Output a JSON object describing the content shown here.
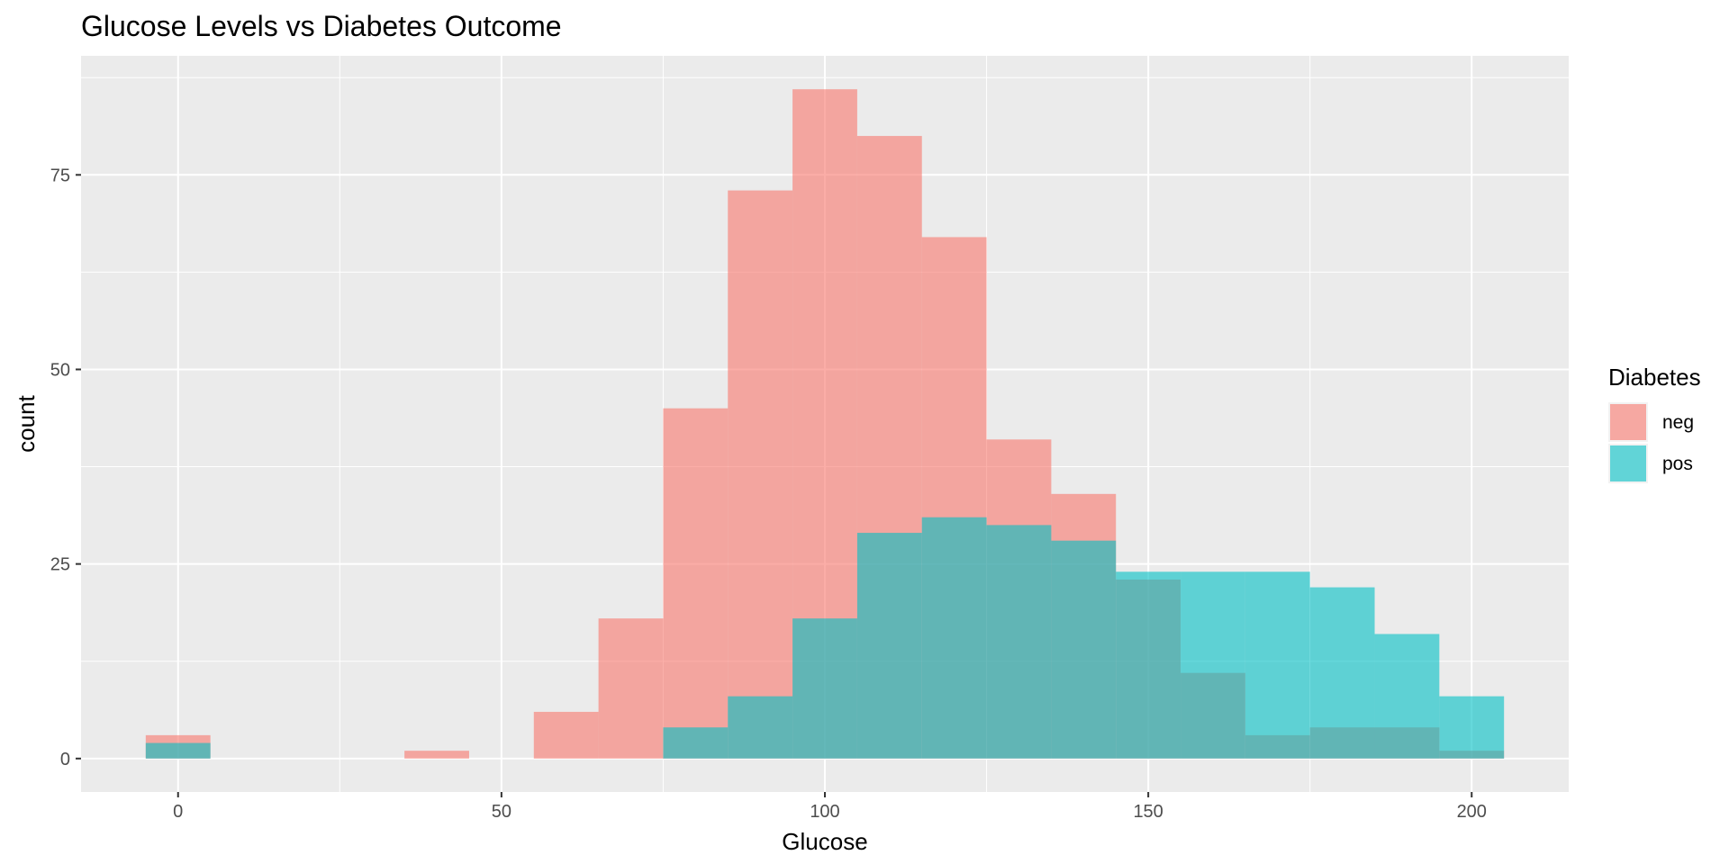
{
  "chart_data": {
    "type": "bar",
    "subtype": "overlapping-histogram",
    "title": "Glucose Levels vs Diabetes Outcome",
    "xlabel": "Glucose",
    "ylabel": "count",
    "xlim": [
      -15,
      215
    ],
    "ylim": [
      -4.3,
      90.3
    ],
    "x_ticks": [
      0,
      50,
      100,
      150,
      200
    ],
    "y_ticks": [
      0,
      25,
      50,
      75
    ],
    "bin_width": 10,
    "grid": true,
    "legend": {
      "title": "Diabetes",
      "placement": "right"
    },
    "series": [
      {
        "name": "neg",
        "color": "#F8766D",
        "bins": [
          {
            "x": 0,
            "count": 3
          },
          {
            "x": 40,
            "count": 1
          },
          {
            "x": 60,
            "count": 6
          },
          {
            "x": 70,
            "count": 18
          },
          {
            "x": 80,
            "count": 45
          },
          {
            "x": 90,
            "count": 73
          },
          {
            "x": 100,
            "count": 86
          },
          {
            "x": 110,
            "count": 80
          },
          {
            "x": 120,
            "count": 67
          },
          {
            "x": 130,
            "count": 41
          },
          {
            "x": 140,
            "count": 34
          },
          {
            "x": 150,
            "count": 23
          },
          {
            "x": 160,
            "count": 11
          },
          {
            "x": 170,
            "count": 3
          },
          {
            "x": 180,
            "count": 4
          },
          {
            "x": 190,
            "count": 4
          },
          {
            "x": 200,
            "count": 1
          }
        ]
      },
      {
        "name": "pos",
        "color": "#00BFC4",
        "bins": [
          {
            "x": 0,
            "count": 2
          },
          {
            "x": 80,
            "count": 4
          },
          {
            "x": 90,
            "count": 8
          },
          {
            "x": 100,
            "count": 18
          },
          {
            "x": 110,
            "count": 29
          },
          {
            "x": 120,
            "count": 31
          },
          {
            "x": 130,
            "count": 30
          },
          {
            "x": 140,
            "count": 28
          },
          {
            "x": 150,
            "count": 24
          },
          {
            "x": 160,
            "count": 24
          },
          {
            "x": 170,
            "count": 24
          },
          {
            "x": 180,
            "count": 22
          },
          {
            "x": 190,
            "count": 16
          },
          {
            "x": 200,
            "count": 8
          }
        ]
      }
    ]
  }
}
